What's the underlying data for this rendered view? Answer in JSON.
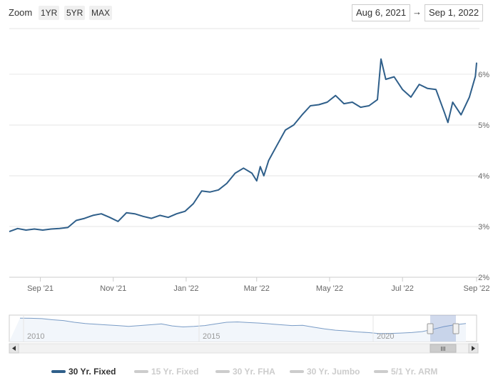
{
  "toolbar": {
    "zoom_label": "Zoom",
    "buttons": [
      "1YR",
      "5YR",
      "MAX"
    ],
    "from_date": "Aug 6, 2021",
    "arrow": "→",
    "to_date": "Sep 1, 2022"
  },
  "chart_data": {
    "type": "line",
    "y_ticks": [
      "2%",
      "3%",
      "4%",
      "5%",
      "6%"
    ],
    "ylim": [
      2,
      6.9
    ],
    "x_ticks": [
      "Sep '21",
      "Nov '21",
      "Jan '22",
      "Mar '22",
      "May '22",
      "Jul '22",
      "Sep '22"
    ],
    "x_range": [
      "2021-08-06",
      "2022-09-01"
    ],
    "series": [
      {
        "name": "30 Yr. Fixed",
        "color": "#2f5f8a",
        "dates": [
          "2021-08-06",
          "2021-08-13",
          "2021-08-20",
          "2021-08-27",
          "2021-09-03",
          "2021-09-10",
          "2021-09-17",
          "2021-09-24",
          "2021-10-01",
          "2021-10-08",
          "2021-10-15",
          "2021-10-22",
          "2021-10-29",
          "2021-11-05",
          "2021-11-12",
          "2021-11-19",
          "2021-11-26",
          "2021-12-03",
          "2021-12-10",
          "2021-12-17",
          "2021-12-24",
          "2021-12-31",
          "2022-01-07",
          "2022-01-14",
          "2022-01-21",
          "2022-01-28",
          "2022-02-04",
          "2022-02-11",
          "2022-02-18",
          "2022-02-25",
          "2022-03-01",
          "2022-03-04",
          "2022-03-07",
          "2022-03-11",
          "2022-03-18",
          "2022-03-25",
          "2022-04-01",
          "2022-04-08",
          "2022-04-15",
          "2022-04-22",
          "2022-04-29",
          "2022-05-06",
          "2022-05-13",
          "2022-05-20",
          "2022-05-27",
          "2022-06-03",
          "2022-06-10",
          "2022-06-13",
          "2022-06-17",
          "2022-06-24",
          "2022-07-01",
          "2022-07-08",
          "2022-07-15",
          "2022-07-22",
          "2022-07-29",
          "2022-08-05",
          "2022-08-08",
          "2022-08-12",
          "2022-08-19",
          "2022-08-26",
          "2022-08-31",
          "2022-09-01"
        ],
        "values": [
          2.9,
          2.96,
          2.93,
          2.95,
          2.93,
          2.95,
          2.96,
          2.98,
          3.12,
          3.16,
          3.22,
          3.25,
          3.18,
          3.1,
          3.27,
          3.25,
          3.2,
          3.16,
          3.22,
          3.18,
          3.25,
          3.3,
          3.45,
          3.7,
          3.68,
          3.72,
          3.85,
          4.05,
          4.15,
          4.05,
          3.9,
          4.18,
          4.0,
          4.3,
          4.6,
          4.9,
          5.0,
          5.2,
          5.38,
          5.4,
          5.45,
          5.58,
          5.42,
          5.45,
          5.35,
          5.38,
          5.5,
          6.3,
          5.9,
          5.95,
          5.7,
          5.55,
          5.8,
          5.72,
          5.7,
          5.25,
          5.05,
          5.45,
          5.2,
          5.55,
          5.96,
          6.23
        ]
      }
    ],
    "navigator": {
      "labels": [
        "2010",
        "2015",
        "2020"
      ],
      "scrollbar_grip": "III"
    },
    "legend": [
      {
        "name": "30 Yr. Fixed",
        "active": true
      },
      {
        "name": "15 Yr. Fixed",
        "active": false
      },
      {
        "name": "30 Yr. FHA",
        "active": false
      },
      {
        "name": "30 Yr. Jumbo",
        "active": false
      },
      {
        "name": "5/1 Yr. ARM",
        "active": false
      }
    ]
  }
}
